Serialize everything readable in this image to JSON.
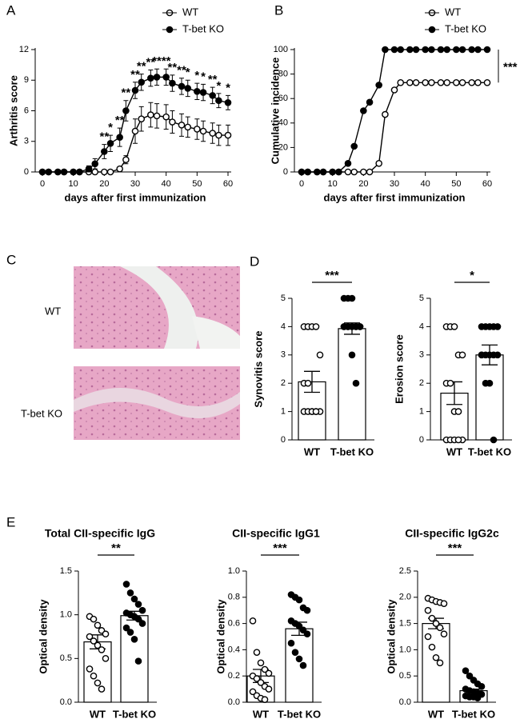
{
  "chart_data": [
    {
      "type": "line",
      "panel": "A",
      "y_label": "Arthritis score",
      "x_label": "days after first immunization",
      "legend": "upper right",
      "x": [
        0,
        2,
        5,
        7,
        10,
        12,
        15,
        17,
        20,
        22,
        25,
        27,
        30,
        32,
        35,
        37,
        40,
        42,
        45,
        47,
        50,
        52,
        55,
        57,
        60
      ],
      "xlim": [
        0,
        60
      ],
      "xticks": [
        0,
        10,
        20,
        30,
        40,
        50,
        60
      ],
      "ylim": [
        0,
        12
      ],
      "yticks": [
        0,
        3,
        6,
        9,
        12
      ],
      "series": [
        {
          "name": "WT",
          "color": "#000000",
          "marker": "open",
          "values": [
            0,
            0,
            0,
            0,
            0,
            0,
            0,
            0,
            0,
            0,
            0.3,
            1.2,
            4.0,
            5.2,
            5.6,
            5.5,
            5.4,
            4.9,
            4.6,
            4.4,
            4.2,
            4.0,
            3.8,
            3.6,
            3.6
          ],
          "errors": [
            0,
            0,
            0,
            0,
            0,
            0,
            0,
            0,
            0,
            0,
            0.2,
            0.4,
            1.2,
            1.2,
            1.2,
            1.2,
            1.2,
            1.1,
            1.1,
            1.0,
            1.0,
            1.0,
            1.0,
            1.0,
            1.0
          ]
        },
        {
          "name": "T-bet KO",
          "color": "#000000",
          "marker": "filled",
          "values": [
            0,
            0,
            0,
            0,
            0,
            0,
            0.3,
            0.8,
            2.0,
            2.8,
            3.4,
            6.0,
            8.0,
            8.8,
            9.2,
            9.3,
            9.3,
            8.7,
            8.4,
            8.2,
            7.9,
            7.8,
            7.5,
            7.0,
            6.8
          ],
          "errors": [
            0,
            0,
            0,
            0,
            0,
            0,
            0.3,
            0.5,
            0.7,
            0.8,
            0.9,
            1.0,
            0.8,
            0.8,
            0.8,
            0.8,
            0.8,
            0.8,
            0.8,
            0.8,
            0.8,
            0.8,
            0.8,
            0.7,
            0.7
          ]
        }
      ],
      "significance": [
        null,
        null,
        null,
        null,
        null,
        null,
        null,
        null,
        "**",
        "*",
        "**",
        "**",
        "**",
        "**",
        "**",
        "**",
        "**",
        "**",
        "**",
        "*",
        "*",
        "*",
        "**",
        "*",
        "*"
      ]
    },
    {
      "type": "line",
      "panel": "B",
      "y_label": "Cumulative incidence",
      "x_label": "days after first immunization",
      "legend": "upper right",
      "annotation": "***",
      "x": [
        0,
        2,
        5,
        7,
        10,
        12,
        15,
        17,
        20,
        22,
        25,
        27,
        30,
        32,
        35,
        37,
        40,
        42,
        45,
        47,
        50,
        52,
        55,
        57,
        60
      ],
      "xlim": [
        0,
        60
      ],
      "xticks": [
        0,
        10,
        20,
        30,
        40,
        50,
        60
      ],
      "ylim": [
        0,
        100
      ],
      "yticks": [
        0,
        20,
        40,
        60,
        80,
        100
      ],
      "series": [
        {
          "name": "WT",
          "color": "#000000",
          "marker": "open",
          "values": [
            0,
            0,
            0,
            0,
            0,
            0,
            0,
            0,
            0,
            0,
            7,
            47,
            67,
            73,
            73,
            73,
            73,
            73,
            73,
            73,
            73,
            73,
            73,
            73,
            73
          ]
        },
        {
          "name": "T-bet KO",
          "color": "#000000",
          "marker": "filled",
          "values": [
            0,
            0,
            0,
            0,
            0,
            0,
            7,
            21,
            50,
            57,
            71,
            100,
            100,
            100,
            100,
            100,
            100,
            100,
            100,
            100,
            100,
            100,
            100,
            100,
            100
          ]
        }
      ]
    },
    {
      "type": "dotbar",
      "panel": "D",
      "y_label": "Synovitis score",
      "annotation": "***",
      "color": "#000000",
      "bar_color": "#ffffff",
      "categories": [
        "WT",
        "T-bet KO"
      ],
      "markers": [
        "open",
        "filled"
      ],
      "values": [
        2.05,
        3.93
      ],
      "errors": [
        0.37,
        0.2
      ],
      "points": [
        [
          4,
          4,
          4,
          4,
          3,
          2,
          2,
          1,
          1,
          1,
          1,
          1,
          1,
          1
        ],
        [
          5,
          5,
          5,
          4,
          4,
          4,
          4,
          4,
          4,
          4,
          4,
          4,
          3,
          2
        ]
      ],
      "ylim": [
        0,
        5
      ],
      "yticks": [
        0,
        1,
        2,
        3,
        4,
        5
      ]
    },
    {
      "type": "dotbar",
      "y_label": "Erosion score",
      "annotation": "*",
      "color": "#000000",
      "bar_color": "#ffffff",
      "categories": [
        "WT",
        "T-bet KO"
      ],
      "markers": [
        "open",
        "filled"
      ],
      "values": [
        1.65,
        3.0
      ],
      "errors": [
        0.4,
        0.35
      ],
      "points": [
        [
          4,
          4,
          4,
          3,
          3,
          2,
          2,
          1,
          1,
          0,
          0,
          0,
          0,
          0
        ],
        [
          4,
          4,
          4,
          4,
          4,
          3,
          3,
          3,
          3,
          3,
          3,
          2,
          2,
          0
        ]
      ],
      "ylim": [
        0,
        5
      ],
      "yticks": [
        0,
        1,
        2,
        3,
        4,
        5
      ]
    },
    {
      "type": "dotbar",
      "panel": "E",
      "title": "Total CII-specific IgG",
      "y_label": "Optical density",
      "annotation": "**",
      "color": "#000000",
      "bar_color": "#ffffff",
      "categories": [
        "WT",
        "T-bet KO"
      ],
      "markers": [
        "open",
        "filled"
      ],
      "values": [
        0.69,
        0.99
      ],
      "errors": [
        0.08,
        0.05
      ],
      "points": [
        [
          0.98,
          0.95,
          0.88,
          0.82,
          0.78,
          0.75,
          0.7,
          0.65,
          0.6,
          0.5,
          0.38,
          0.3,
          0.22,
          0.15
        ],
        [
          1.35,
          1.25,
          1.18,
          1.12,
          1.05,
          1.02,
          1.0,
          0.98,
          0.95,
          0.9,
          0.85,
          0.8,
          0.72,
          0.47
        ]
      ],
      "ylim": [
        0,
        1.5
      ],
      "yticks": [
        {
          "value": 0,
          "label": "0.0"
        },
        0.5,
        {
          "value": 1,
          "label": "1.0"
        },
        1.5
      ]
    },
    {
      "type": "dotbar",
      "title": "CII-specific IgG1",
      "y_label": "Optical density",
      "annotation": "***",
      "color": "#000000",
      "bar_color": "#ffffff",
      "categories": [
        "WT",
        "T-bet KO"
      ],
      "markers": [
        "open",
        "filled"
      ],
      "values": [
        0.2,
        0.56
      ],
      "errors": [
        0.05,
        0.05
      ],
      "points": [
        [
          0.62,
          0.38,
          0.3,
          0.25,
          0.22,
          0.2,
          0.18,
          0.15,
          0.12,
          0.1,
          0.08,
          0.05,
          0.03,
          0.02
        ],
        [
          0.82,
          0.8,
          0.78,
          0.72,
          0.7,
          0.62,
          0.6,
          0.58,
          0.55,
          0.52,
          0.45,
          0.38,
          0.33,
          0.28
        ]
      ],
      "ylim": [
        0,
        1
      ],
      "yticks": [
        {
          "value": 0,
          "label": "0.0"
        },
        0.2,
        0.4,
        0.6,
        0.8,
        {
          "value": 1,
          "label": "1.0"
        }
      ]
    },
    {
      "type": "dotbar",
      "title": "CII-specific IgG2c",
      "y_label": "Optical density",
      "annotation": "***",
      "color": "#000000",
      "bar_color": "#ffffff",
      "categories": [
        "WT",
        "T-bet KO"
      ],
      "markers": [
        "open",
        "filled"
      ],
      "values": [
        1.5,
        0.22
      ],
      "errors": [
        0.1,
        0.03
      ],
      "points": [
        [
          1.98,
          1.95,
          1.92,
          1.9,
          1.88,
          1.75,
          1.6,
          1.5,
          1.42,
          1.3,
          1.25,
          1.05,
          0.85,
          0.75
        ],
        [
          0.6,
          0.5,
          0.42,
          0.35,
          0.3,
          0.25,
          0.22,
          0.2,
          0.18,
          0.15,
          0.12,
          0.1,
          0.1,
          0.08
        ]
      ],
      "ylim": [
        0,
        2.5
      ],
      "yticks": [
        {
          "value": 0,
          "label": "0.0"
        },
        0.5,
        {
          "value": 1,
          "label": "1.0"
        },
        1.5,
        {
          "value": 2,
          "label": "2.0"
        },
        2.5
      ]
    }
  ],
  "figure_c": {
    "panel": "C",
    "labels": [
      "WT",
      "T-bet KO"
    ]
  }
}
